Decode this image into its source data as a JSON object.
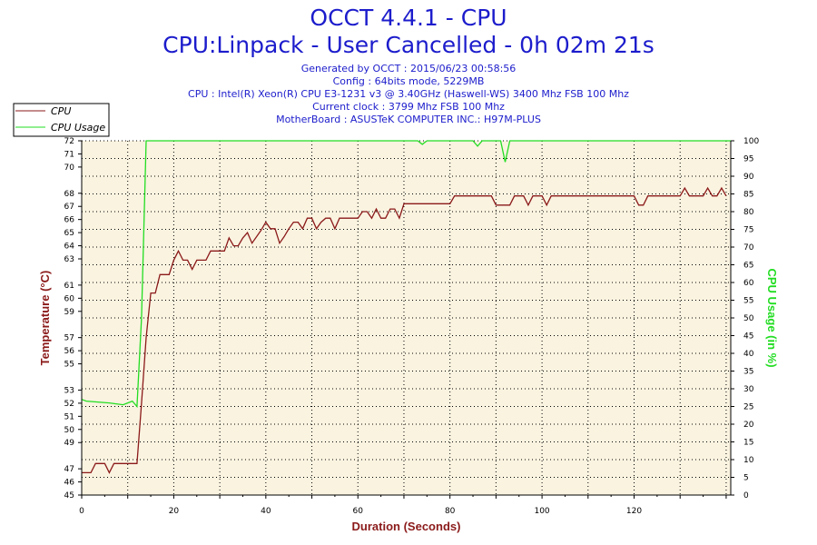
{
  "header": {
    "title": "OCCT 4.4.1 - CPU",
    "subtitle": "CPU:Linpack - User Cancelled - 0h 02m 21s",
    "meta": [
      "Generated by OCCT : 2015/06/23 00:58:56",
      "Config : 64bits mode, 5229MB",
      "CPU : Intel(R) Xeon(R) CPU E3-1231 v3 @ 3.40GHz (Haswell-WS) 3400 Mhz FSB 100 Mhz",
      "Current clock : 3799 Mhz FSB 100 Mhz",
      "MotherBoard : ASUSTeK COMPUTER INC.: H97M-PLUS"
    ]
  },
  "colors": {
    "temperature": "#8b1a1a",
    "usage": "#22dd22",
    "plot_background": "#faf3e0",
    "title": "#1c1ccc"
  },
  "chart_data": {
    "type": "line",
    "xlabel": "Duration (Seconds)",
    "ylabel_left": "Temperature (°C)",
    "ylabel_right": "CPU Usage (in %)",
    "xlim": [
      0,
      141
    ],
    "xticks": [
      0,
      20,
      40,
      60,
      80,
      100,
      120
    ],
    "ylim_left": [
      45,
      72
    ],
    "yticks_left": [
      45,
      46,
      47,
      49,
      50,
      51,
      52,
      53,
      55,
      56,
      57,
      59,
      60,
      61,
      63,
      64,
      65,
      66,
      67,
      68,
      70,
      71,
      72
    ],
    "ylim_right": [
      0,
      100
    ],
    "yticks_right": [
      0,
      5,
      10,
      15,
      20,
      25,
      30,
      35,
      40,
      45,
      50,
      55,
      60,
      65,
      70,
      75,
      80,
      85,
      90,
      95,
      100
    ],
    "grid": true,
    "legend": "top-left",
    "series": [
      {
        "name": "CPU",
        "axis": "left",
        "points": [
          [
            0,
            46.7
          ],
          [
            2,
            46.7
          ],
          [
            3,
            47.4
          ],
          [
            5,
            47.4
          ],
          [
            6,
            46.7
          ],
          [
            7,
            47.4
          ],
          [
            12,
            47.4
          ],
          [
            13,
            52
          ],
          [
            14,
            57
          ],
          [
            15,
            60.4
          ],
          [
            16,
            60.4
          ],
          [
            17,
            61.8
          ],
          [
            19,
            61.8
          ],
          [
            20,
            62.9
          ],
          [
            21,
            63.6
          ],
          [
            22,
            62.9
          ],
          [
            23,
            62.9
          ],
          [
            24,
            62.2
          ],
          [
            25,
            62.9
          ],
          [
            27,
            62.9
          ],
          [
            28,
            63.6
          ],
          [
            31,
            63.6
          ],
          [
            32,
            64.6
          ],
          [
            33,
            64
          ],
          [
            34,
            64
          ],
          [
            35,
            64.6
          ],
          [
            36,
            65
          ],
          [
            37,
            64.2
          ],
          [
            39,
            65.2
          ],
          [
            40,
            65.8
          ],
          [
            41,
            65.3
          ],
          [
            42,
            65.3
          ],
          [
            43,
            64.2
          ],
          [
            44,
            64.7
          ],
          [
            45,
            65.3
          ],
          [
            46,
            65.8
          ],
          [
            47,
            65.8
          ],
          [
            48,
            65.3
          ],
          [
            49,
            66.1
          ],
          [
            50,
            66.1
          ],
          [
            51,
            65.3
          ],
          [
            52,
            65.8
          ],
          [
            53,
            66.1
          ],
          [
            54,
            66.1
          ],
          [
            55,
            65.3
          ],
          [
            56,
            66.1
          ],
          [
            60,
            66.1
          ],
          [
            61,
            66.6
          ],
          [
            62,
            66.6
          ],
          [
            63,
            66.1
          ],
          [
            64,
            66.8
          ],
          [
            65,
            66.1
          ],
          [
            66,
            66.1
          ],
          [
            67,
            66.8
          ],
          [
            68,
            66.8
          ],
          [
            69,
            66.1
          ],
          [
            70,
            67.2
          ],
          [
            80,
            67.2
          ],
          [
            81,
            67.8
          ],
          [
            89,
            67.8
          ],
          [
            90,
            67.1
          ],
          [
            93,
            67.1
          ],
          [
            94,
            67.8
          ],
          [
            96,
            67.8
          ],
          [
            97,
            67.1
          ],
          [
            98,
            67.8
          ],
          [
            100,
            67.8
          ],
          [
            101,
            67.1
          ],
          [
            102,
            67.8
          ],
          [
            120,
            67.8
          ],
          [
            121,
            67.1
          ],
          [
            122,
            67.1
          ],
          [
            123,
            67.8
          ],
          [
            130,
            67.8
          ],
          [
            131,
            68.4
          ],
          [
            132,
            67.8
          ],
          [
            135,
            67.8
          ],
          [
            136,
            68.4
          ],
          [
            137,
            67.8
          ],
          [
            138,
            67.8
          ],
          [
            139,
            68.4
          ],
          [
            140,
            67.8
          ]
        ]
      },
      {
        "name": "CPU Usage",
        "axis": "right",
        "points": [
          [
            0,
            27
          ],
          [
            1,
            26.5
          ],
          [
            6,
            26
          ],
          [
            9,
            25.5
          ],
          [
            10,
            26
          ],
          [
            11,
            26.5
          ],
          [
            12,
            25
          ],
          [
            13,
            50
          ],
          [
            14,
            100
          ],
          [
            73,
            100
          ],
          [
            74,
            99
          ],
          [
            75,
            100
          ],
          [
            85,
            100
          ],
          [
            86,
            98.5
          ],
          [
            87,
            100
          ],
          [
            91,
            100
          ],
          [
            92,
            94
          ],
          [
            93,
            100
          ],
          [
            141,
            100
          ]
        ]
      }
    ]
  }
}
